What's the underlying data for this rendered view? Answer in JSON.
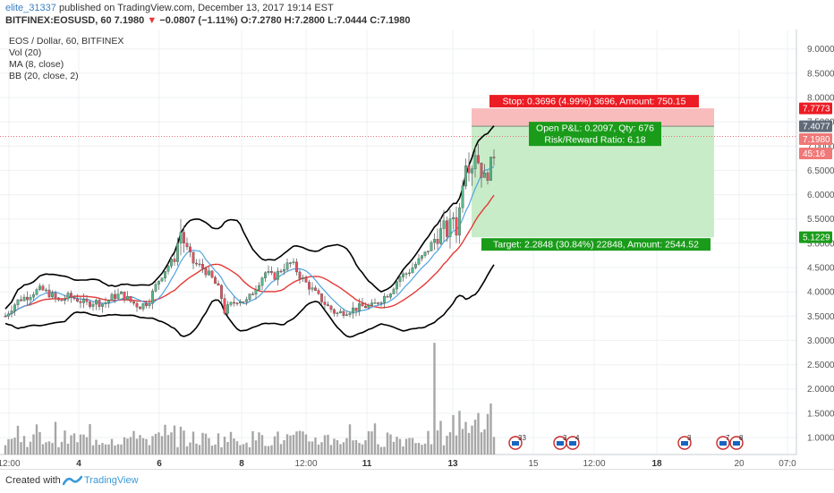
{
  "header": {
    "user": "elite_31337",
    "published": " published on TradingView.com, December 13, 2017 19:14 EST",
    "symbol": "BITFINEX:EOSUSD, 60",
    "last": "7.1980",
    "change_arrow": "▼",
    "change": "−0.0807 (−1.11%)",
    "o_label": "O:",
    "o": "7.2780",
    "h_label": "H:",
    "h": "7.2800",
    "l_label": "L:",
    "l": "7.0444",
    "c_label": "C:",
    "c": "7.1980"
  },
  "legend": {
    "title": "EOS / Dollar, 60, BITFINEX",
    "vol": "Vol (20)",
    "ma": "MA (8, close)",
    "bb": "BB (20, close, 2)"
  },
  "position": {
    "stop_label": "Stop: 0.3696 (4.99%) 3696, Amount: 750.15",
    "open_label": "Open P&L: 0.2097, Qty: 676",
    "rr_label": "Risk/Reward Ratio: 6.18",
    "target_label": "Target: 2.2848 (30.84%) 22848, Amount: 2544.52",
    "stop_price": 7.7773,
    "entry_price": 7.4077,
    "target_price": 5.1229,
    "colors": {
      "stop": "#f8bcbc",
      "target": "#c8ecc8",
      "stop_tag": "#ec1c24",
      "target_tag": "#1a9c1a"
    }
  },
  "price_tags": {
    "stop": "7.7773",
    "entry": "7.4077",
    "last": "7.1980",
    "countdown": "45:16",
    "target": "5.1229"
  },
  "chart_data": {
    "type": "candlestick",
    "symbol": "BITFINEX:EOSUSD",
    "interval": "60",
    "ylim": [
      0.65,
      9.4
    ],
    "y_ticks": [
      "9.0000",
      "8.5000",
      "8.0000",
      "7.5000",
      "7.0000",
      "6.5000",
      "6.0000",
      "5.5000",
      "5.0000",
      "4.5000",
      "4.0000",
      "3.5000",
      "3.0000",
      "2.5000",
      "2.0000",
      "1.5000",
      "1.0000"
    ],
    "x_ticks": [
      "12:00",
      "4",
      "6",
      "8",
      "12:00",
      "11",
      "13",
      "15",
      "12:00",
      "18",
      "20",
      "07:0"
    ],
    "close_path": [
      [
        0,
        3.5
      ],
      [
        8,
        3.7
      ],
      [
        16,
        3.85
      ],
      [
        24,
        3.9
      ],
      [
        32,
        4.0
      ],
      [
        40,
        4.05
      ],
      [
        50,
        3.95
      ],
      [
        60,
        3.8
      ],
      [
        70,
        3.9
      ],
      [
        80,
        3.85
      ],
      [
        90,
        3.75
      ],
      [
        100,
        3.8
      ],
      [
        110,
        3.75
      ],
      [
        120,
        3.9
      ],
      [
        130,
        3.95
      ],
      [
        140,
        3.8
      ],
      [
        150,
        3.7
      ],
      [
        160,
        3.8
      ],
      [
        170,
        4.2
      ],
      [
        180,
        4.5
      ],
      [
        190,
        4.7
      ],
      [
        195,
        5.3
      ],
      [
        200,
        5.0
      ],
      [
        205,
        4.8
      ],
      [
        210,
        4.6
      ],
      [
        220,
        4.5
      ],
      [
        230,
        4.3
      ],
      [
        240,
        4.0
      ],
      [
        245,
        3.6
      ],
      [
        250,
        3.7
      ],
      [
        260,
        3.85
      ],
      [
        270,
        3.8
      ],
      [
        280,
        4.1
      ],
      [
        290,
        4.4
      ],
      [
        300,
        4.3
      ],
      [
        310,
        4.5
      ],
      [
        320,
        4.6
      ],
      [
        330,
        4.3
      ],
      [
        340,
        4.1
      ],
      [
        350,
        3.9
      ],
      [
        360,
        3.7
      ],
      [
        370,
        3.55
      ],
      [
        380,
        3.6
      ],
      [
        390,
        3.65
      ],
      [
        400,
        3.7
      ],
      [
        410,
        3.7
      ],
      [
        420,
        3.85
      ],
      [
        430,
        4.0
      ],
      [
        440,
        4.3
      ],
      [
        450,
        4.4
      ],
      [
        460,
        4.6
      ],
      [
        470,
        4.8
      ],
      [
        480,
        5.1
      ],
      [
        490,
        5.3
      ],
      [
        495,
        5.2
      ],
      [
        500,
        5.6
      ],
      [
        505,
        5.2
      ],
      [
        510,
        6.2
      ],
      [
        515,
        6.8
      ],
      [
        520,
        6.5
      ],
      [
        525,
        6.9
      ],
      [
        530,
        6.6
      ],
      [
        535,
        6.3
      ],
      [
        540,
        6.5
      ],
      [
        545,
        6.7
      ],
      [
        548,
        7.2
      ]
    ],
    "volume_spikes": [
      {
        "x": 487,
        "value": 2.95
      },
      {
        "x": 515,
        "value": 1.55
      }
    ],
    "events": [
      "33",
      "3",
      "4",
      "3",
      "7",
      "8"
    ]
  },
  "footer": {
    "created": "Created with",
    "brand": "TradingView"
  }
}
